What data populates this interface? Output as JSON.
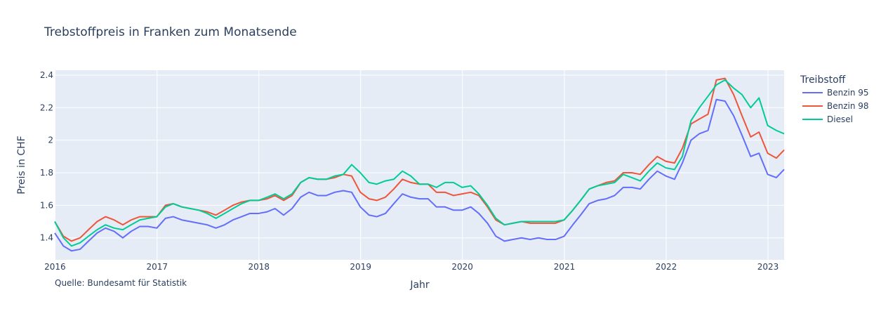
{
  "chart_data": {
    "type": "line",
    "title": "Trebstoffpreis in Franken zum Monatsende",
    "xlabel": "Jahr",
    "ylabel": "Preis in CHF",
    "legend_title": "Treibstoff",
    "legend_position": "right",
    "annotation": "Quelle: Bundesamt für Statistik",
    "grid": true,
    "background": "#e5ecf6",
    "xlim": [
      "2015-12-31",
      "2023-02-28"
    ],
    "ylim": [
      1.265,
      2.43
    ],
    "x_ticks": [
      "2016",
      "2017",
      "2018",
      "2019",
      "2020",
      "2021",
      "2022",
      "2023"
    ],
    "y_ticks": [
      "1.4",
      "1.6",
      "1.8",
      "2",
      "2.2",
      "2.4"
    ],
    "x": [
      "2015-12-31",
      "2016-01-31",
      "2016-02-29",
      "2016-03-31",
      "2016-04-30",
      "2016-05-31",
      "2016-06-30",
      "2016-07-31",
      "2016-08-31",
      "2016-09-30",
      "2016-10-31",
      "2016-11-30",
      "2016-12-31",
      "2017-01-31",
      "2017-02-28",
      "2017-03-31",
      "2017-04-30",
      "2017-05-31",
      "2017-06-30",
      "2017-07-31",
      "2017-08-31",
      "2017-09-30",
      "2017-10-31",
      "2017-11-30",
      "2017-12-31",
      "2018-01-31",
      "2018-02-28",
      "2018-03-31",
      "2018-04-30",
      "2018-05-31",
      "2018-06-30",
      "2018-07-31",
      "2018-08-31",
      "2018-09-30",
      "2018-10-31",
      "2018-11-30",
      "2018-12-31",
      "2019-01-31",
      "2019-02-28",
      "2019-03-31",
      "2019-04-30",
      "2019-05-31",
      "2019-06-30",
      "2019-07-31",
      "2019-08-31",
      "2019-09-30",
      "2019-10-31",
      "2019-11-30",
      "2019-12-31",
      "2020-01-31",
      "2020-02-29",
      "2020-03-31",
      "2020-04-30",
      "2020-05-31",
      "2020-06-30",
      "2020-07-31",
      "2020-08-31",
      "2020-09-30",
      "2020-10-31",
      "2020-11-30",
      "2020-12-31",
      "2021-01-31",
      "2021-02-28",
      "2021-03-31",
      "2021-04-30",
      "2021-05-31",
      "2021-06-30",
      "2021-07-31",
      "2021-08-31",
      "2021-09-30",
      "2021-10-31",
      "2021-11-30",
      "2021-12-31",
      "2022-01-31",
      "2022-02-28",
      "2022-03-31",
      "2022-04-30",
      "2022-05-31",
      "2022-06-30",
      "2022-07-31",
      "2022-08-31",
      "2022-09-30",
      "2022-10-31",
      "2022-11-30",
      "2022-12-31",
      "2023-01-31",
      "2023-02-28"
    ],
    "series": [
      {
        "name": "Benzin 95",
        "color": "#636efa",
        "values": [
          1.43,
          1.35,
          1.32,
          1.33,
          1.38,
          1.43,
          1.46,
          1.44,
          1.4,
          1.44,
          1.47,
          1.47,
          1.46,
          1.52,
          1.53,
          1.51,
          1.5,
          1.49,
          1.48,
          1.46,
          1.48,
          1.51,
          1.53,
          1.55,
          1.55,
          1.56,
          1.58,
          1.54,
          1.58,
          1.65,
          1.68,
          1.66,
          1.66,
          1.68,
          1.69,
          1.68,
          1.59,
          1.54,
          1.53,
          1.55,
          1.61,
          1.67,
          1.65,
          1.64,
          1.64,
          1.59,
          1.59,
          1.57,
          1.57,
          1.59,
          1.55,
          1.49,
          1.41,
          1.38,
          1.39,
          1.4,
          1.39,
          1.4,
          1.39,
          1.39,
          1.41,
          1.48,
          1.54,
          1.61,
          1.63,
          1.64,
          1.66,
          1.71,
          1.71,
          1.7,
          1.76,
          1.81,
          1.78,
          1.76,
          1.86,
          2.0,
          2.04,
          2.06,
          2.25,
          2.24,
          2.15,
          2.03,
          1.9,
          1.92,
          1.79,
          1.77,
          1.82
        ]
      },
      {
        "name": "Benzin 98",
        "color": "#ef553b",
        "values": [
          1.5,
          1.41,
          1.38,
          1.4,
          1.45,
          1.5,
          1.53,
          1.51,
          1.48,
          1.51,
          1.53,
          1.53,
          1.53,
          1.6,
          1.61,
          1.59,
          1.58,
          1.57,
          1.56,
          1.54,
          1.57,
          1.6,
          1.62,
          1.63,
          1.63,
          1.64,
          1.66,
          1.63,
          1.66,
          1.74,
          1.77,
          1.76,
          1.76,
          1.77,
          1.79,
          1.78,
          1.68,
          1.64,
          1.63,
          1.65,
          1.7,
          1.76,
          1.74,
          1.73,
          1.73,
          1.68,
          1.68,
          1.66,
          1.67,
          1.68,
          1.66,
          1.59,
          1.51,
          1.48,
          1.49,
          1.5,
          1.49,
          1.49,
          1.49,
          1.49,
          1.51,
          1.57,
          1.63,
          1.7,
          1.72,
          1.74,
          1.75,
          1.8,
          1.8,
          1.79,
          1.85,
          1.9,
          1.87,
          1.86,
          1.95,
          2.1,
          2.13,
          2.16,
          2.37,
          2.38,
          2.28,
          2.15,
          2.02,
          2.05,
          1.92,
          1.89,
          1.94
        ]
      },
      {
        "name": "Diesel",
        "color": "#00cc96",
        "values": [
          1.5,
          1.4,
          1.35,
          1.37,
          1.41,
          1.45,
          1.48,
          1.46,
          1.45,
          1.48,
          1.51,
          1.52,
          1.53,
          1.59,
          1.61,
          1.59,
          1.58,
          1.57,
          1.55,
          1.52,
          1.55,
          1.58,
          1.61,
          1.63,
          1.63,
          1.65,
          1.67,
          1.64,
          1.67,
          1.74,
          1.77,
          1.76,
          1.76,
          1.78,
          1.79,
          1.85,
          1.8,
          1.74,
          1.73,
          1.75,
          1.76,
          1.81,
          1.78,
          1.73,
          1.73,
          1.71,
          1.74,
          1.74,
          1.71,
          1.72,
          1.67,
          1.6,
          1.52,
          1.48,
          1.49,
          1.5,
          1.5,
          1.5,
          1.5,
          1.5,
          1.51,
          1.57,
          1.63,
          1.7,
          1.72,
          1.73,
          1.74,
          1.79,
          1.77,
          1.75,
          1.81,
          1.86,
          1.83,
          1.82,
          1.9,
          2.12,
          2.2,
          2.27,
          2.34,
          2.37,
          2.32,
          2.28,
          2.2,
          2.26,
          2.09,
          2.06,
          2.04
        ]
      }
    ]
  }
}
